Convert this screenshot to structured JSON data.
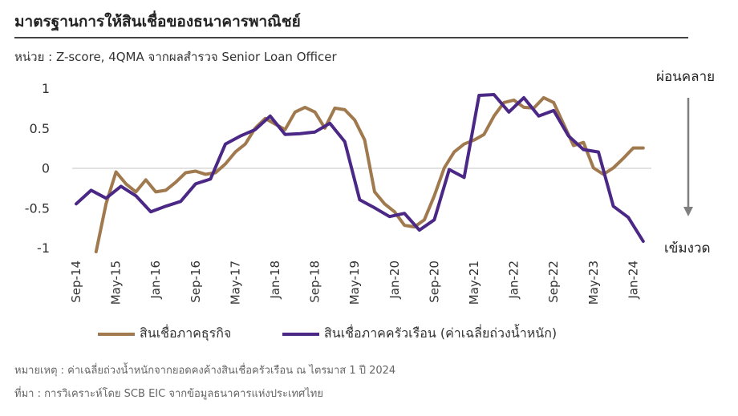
{
  "header": {
    "title": "มาตรฐานการให้สินเชื่อของธนาคารพาณิชย์",
    "subtitle": "หน่วย : Z-score, 4QMA จากผลสำรวจ Senior Loan Officer"
  },
  "annotations": {
    "top": "ผ่อนคลาย",
    "bottom": "เข้มงวด"
  },
  "footnotes": {
    "note": "หมายเหตุ : ค่าเฉลี่ยถ่วงน้ำหนักจากยอดคงค้างสินเชื่อครัวเรือน ณ ไตรมาส 1 ปี 2024",
    "source": "ที่มา : การวิเคราะห์โดย SCB EIC จากข้อมูลธนาคารแห่งประเทศไทย"
  },
  "colors": {
    "business": "#A07A4E",
    "household": "#4B2886",
    "arrow": "#7F7F7F",
    "axis_text": "#333333"
  },
  "chart_data": {
    "type": "line",
    "x_tick_labels": [
      "Sep-14",
      "May-15",
      "Jan-16",
      "Sep-16",
      "May-17",
      "Jan-18",
      "Sep-18",
      "May-19",
      "Jan-20",
      "Sep-20",
      "May-21",
      "Jan-22",
      "Sep-22",
      "May-23",
      "Jan-24"
    ],
    "ylim": [
      -1,
      1
    ],
    "y_ticks": [
      1,
      0.5,
      0,
      -0.5,
      -1
    ],
    "y_tick_labels": [
      "1",
      "0.5",
      "0",
      "-0.5",
      "-1"
    ],
    "grid": false,
    "legend_position": "bottom",
    "series": [
      {
        "name": "สินเชื่อภาคธุรกิจ",
        "color_key": "business",
        "x": [
          "2015-01",
          "2015-03",
          "2015-05",
          "2015-07",
          "2015-09",
          "2015-11",
          "2016-01",
          "2016-03",
          "2016-05",
          "2016-07",
          "2016-09",
          "2016-11",
          "2017-01",
          "2017-03",
          "2017-05",
          "2017-07",
          "2017-09",
          "2017-11",
          "2018-01",
          "2018-03",
          "2018-05",
          "2018-07",
          "2018-09",
          "2018-11",
          "2019-01",
          "2019-03",
          "2019-05",
          "2019-07",
          "2019-09",
          "2019-11",
          "2020-01",
          "2020-03",
          "2020-05",
          "2020-07",
          "2020-09",
          "2020-11",
          "2021-01",
          "2021-03",
          "2021-05",
          "2021-07",
          "2021-09",
          "2021-11",
          "2022-01",
          "2022-03",
          "2022-05",
          "2022-07",
          "2022-09",
          "2022-11",
          "2023-01",
          "2023-03",
          "2023-05",
          "2023-07",
          "2023-09",
          "2023-11",
          "2024-01",
          "2024-03"
        ],
        "values": [
          -1.05,
          -0.45,
          -0.05,
          -0.2,
          -0.3,
          -0.15,
          -0.3,
          -0.28,
          -0.18,
          -0.06,
          -0.04,
          -0.08,
          -0.06,
          0.05,
          0.2,
          0.3,
          0.5,
          0.62,
          0.55,
          0.48,
          0.7,
          0.76,
          0.7,
          0.5,
          0.75,
          0.73,
          0.6,
          0.35,
          -0.3,
          -0.45,
          -0.55,
          -0.72,
          -0.74,
          -0.65,
          -0.35,
          0.0,
          0.2,
          0.3,
          0.35,
          0.42,
          0.65,
          0.82,
          0.85,
          0.76,
          0.75,
          0.88,
          0.82,
          0.55,
          0.28,
          0.32,
          0.0,
          -0.08,
          0.0,
          0.12,
          0.25,
          0.25
        ]
      },
      {
        "name": "สินเชื่อภาคครัวเรือน (ค่าเฉลี่ยถ่วงน้ำหนัก)",
        "color_key": "household",
        "x": [
          "2014-09",
          "2014-12",
          "2015-03",
          "2015-06",
          "2015-09",
          "2015-12",
          "2016-03",
          "2016-06",
          "2016-09",
          "2016-12",
          "2017-03",
          "2017-06",
          "2017-09",
          "2017-12",
          "2018-03",
          "2018-06",
          "2018-09",
          "2018-12",
          "2019-03",
          "2019-06",
          "2019-09",
          "2019-12",
          "2020-03",
          "2020-06",
          "2020-09",
          "2020-12",
          "2021-03",
          "2021-06",
          "2021-09",
          "2021-12",
          "2022-03",
          "2022-06",
          "2022-09",
          "2022-12",
          "2023-03",
          "2023-06",
          "2023-09",
          "2023-12",
          "2024-03"
        ],
        "values": [
          -0.45,
          -0.28,
          -0.38,
          -0.23,
          -0.35,
          -0.55,
          -0.48,
          -0.42,
          -0.2,
          -0.14,
          0.3,
          0.4,
          0.48,
          0.65,
          0.42,
          0.43,
          0.45,
          0.56,
          0.33,
          -0.4,
          -0.5,
          -0.61,
          -0.57,
          -0.78,
          -0.65,
          -0.02,
          -0.12,
          0.91,
          0.92,
          0.7,
          0.88,
          0.65,
          0.72,
          0.4,
          0.23,
          0.2,
          -0.48,
          -0.62,
          -0.92
        ]
      }
    ]
  }
}
